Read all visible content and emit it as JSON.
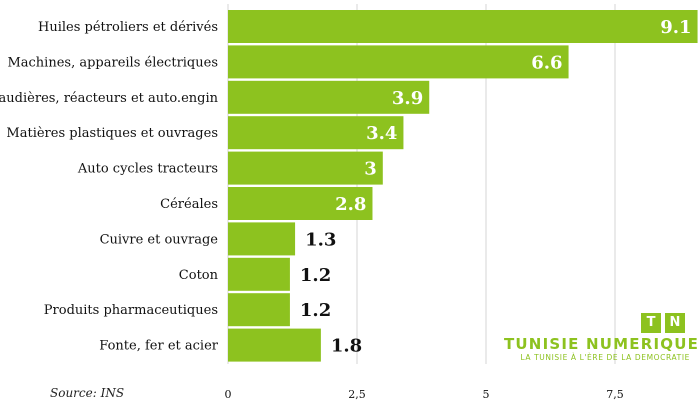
{
  "chart_data": {
    "type": "bar",
    "orientation": "horizontal",
    "title": "",
    "xlabel": "",
    "ylabel": "",
    "categories": [
      "Huiles pétroliers et dérivés",
      "Machines, appareils électriques",
      "Chaudières, réacteurs et auto.engin",
      "Matières plastiques et ouvrages",
      "Auto cycles tracteurs",
      "Céréales",
      "Cuivre et ouvrage",
      "Coton",
      "Produits pharmaceutiques",
      "Fonte, fer et acier"
    ],
    "values": [
      9.1,
      6.6,
      3.9,
      3.4,
      3,
      2.8,
      1.3,
      1.2,
      1.2,
      1.8
    ],
    "value_labels": [
      "9.1",
      "6.6",
      "3.9",
      "3.4",
      "3",
      "2.8",
      "1.3",
      "1.2",
      "1.2",
      "1.8"
    ],
    "xlim": [
      0,
      9.3
    ],
    "xticks": [
      0,
      2.5,
      5,
      7.5
    ],
    "xtick_labels": [
      "0",
      "2,5",
      "5",
      "7,5"
    ],
    "grid": true,
    "bar_color": "#8dc21f",
    "source": "Source: INS"
  },
  "logo": {
    "letter_t": "T",
    "letter_n": "N",
    "name": "TUNISIE NUMERIQUE",
    "tagline": "LA TUNISIE À L'ÈRE DE LA DEMOCRATIE",
    "color": "#8dc21f"
  }
}
